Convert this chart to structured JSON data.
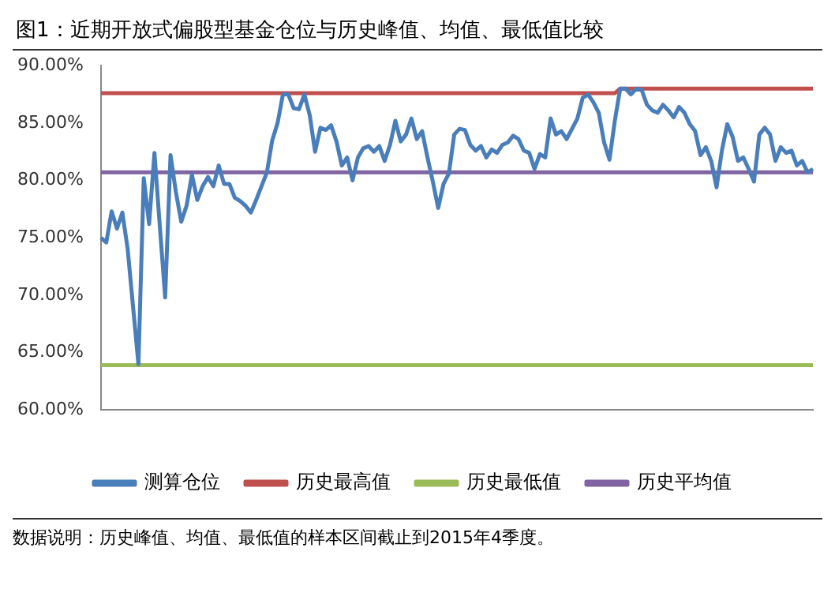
{
  "chart_data": {
    "type": "line",
    "title": "图1：近期开放式偏股型基金仓位与历史峰值、均值、最低值比较",
    "categories": [
      null,
      null,
      null,
      null,
      null,
      null,
      null,
      null,
      null,
      null,
      null,
      null,
      null,
      null,
      null,
      null,
      null,
      null,
      null,
      null,
      null,
      null,
      null,
      null,
      null,
      null,
      null,
      null,
      null,
      null,
      null,
      null,
      null,
      null,
      null,
      null,
      null,
      null,
      null,
      null,
      null,
      null,
      null,
      null,
      null,
      null,
      null,
      null,
      null,
      null,
      null,
      null,
      null,
      null,
      null,
      null,
      null,
      null,
      null,
      null,
      null,
      null,
      null,
      null,
      null,
      null,
      null,
      null,
      null,
      null,
      null,
      null,
      null,
      null,
      null,
      null,
      null,
      null,
      null,
      null,
      null,
      null,
      null,
      null,
      null,
      null,
      null,
      null,
      null,
      null,
      null,
      null,
      null,
      null,
      null,
      null,
      null,
      null,
      null,
      null,
      null,
      null,
      null,
      null,
      null,
      null,
      null,
      null,
      null,
      null,
      null,
      null,
      null,
      null,
      null,
      null,
      null,
      null,
      null,
      null,
      null,
      null,
      null,
      null,
      null,
      null,
      null,
      null,
      null,
      null,
      null,
      null,
      null,
      null
    ],
    "series": [
      {
        "name": "测算仓位",
        "color": "#4a7ebb",
        "values": [
          75.0,
          74.6,
          77.3,
          75.8,
          77.2,
          74,
          69,
          64.0,
          80.2,
          76.2,
          82.4,
          76,
          69.8,
          82.2,
          79,
          76.4,
          77.8,
          80.5,
          78.3,
          79.5,
          80.3,
          79.5,
          81.3,
          79.7,
          79.7,
          78.5,
          78.2,
          77.8,
          77.2,
          78.3,
          79.5,
          80.7,
          83.5,
          85.0,
          87.5,
          87.5,
          86.3,
          86.2,
          87.5,
          85.7,
          82.5,
          84.6,
          84.4,
          84.8,
          83.4,
          81.3,
          82.0,
          80.0,
          82.0,
          82.8,
          83.0,
          82.5,
          83.0,
          81.7,
          83.1,
          85.2,
          83.4,
          84.0,
          85.4,
          83.6,
          84.3,
          82.0,
          79.9,
          77.6,
          79.7,
          80.6,
          84.0,
          84.5,
          84.4,
          83.1,
          82.6,
          83.0,
          82.0,
          82.7,
          82.4,
          83.1,
          83.3,
          83.9,
          83.6,
          82.6,
          82.4,
          81.0,
          82.3,
          82.0,
          85.4,
          84.0,
          84.3,
          83.6,
          84.5,
          85.4,
          87.2,
          87.5,
          86.8,
          85.9,
          83.3,
          81.8,
          85.2,
          88.0,
          88.0,
          87.5,
          88.0,
          87.9,
          86.6,
          86.1,
          85.9,
          86.6,
          86.1,
          85.5,
          86.4,
          85.9,
          84.9,
          84.3,
          82.2,
          82.9,
          81.7,
          79.4,
          82.6,
          84.9,
          83.8,
          81.7,
          82.0,
          81.0,
          79.9,
          84.0,
          84.6,
          84.0,
          81.7,
          82.9,
          82.4,
          82.6,
          81.3,
          81.7,
          80.7,
          81.0
        ]
      },
      {
        "name": "历史最高值",
        "color": "#c0504d",
        "values": [
          87.6,
          87.6,
          87.6,
          87.6,
          87.6,
          87.6,
          87.6,
          87.6,
          87.6,
          87.6,
          87.6,
          87.6,
          87.6,
          87.6,
          87.6,
          87.6,
          87.6,
          87.6,
          87.6,
          87.6,
          87.6,
          87.6,
          87.6,
          87.6,
          87.6,
          87.6,
          87.6,
          87.6,
          87.6,
          87.6,
          87.6,
          87.6,
          87.6,
          87.6,
          87.6,
          87.6,
          87.6,
          87.6,
          87.6,
          87.6,
          87.6,
          87.6,
          87.6,
          87.6,
          87.6,
          87.6,
          87.6,
          87.6,
          87.6,
          87.6,
          87.6,
          87.6,
          87.6,
          87.6,
          87.6,
          87.6,
          87.6,
          87.6,
          87.6,
          87.6,
          87.6,
          87.6,
          87.6,
          87.6,
          87.6,
          87.6,
          87.6,
          87.6,
          87.6,
          87.6,
          87.6,
          87.6,
          87.6,
          87.6,
          87.6,
          87.6,
          87.6,
          87.6,
          87.6,
          87.6,
          87.6,
          87.6,
          87.6,
          87.6,
          87.6,
          87.6,
          87.6,
          87.6,
          87.6,
          87.6,
          87.6,
          87.6,
          87.6,
          87.6,
          87.6,
          87.6,
          87.6,
          88.0,
          88.0,
          88.0,
          88.0,
          88.0,
          88.0,
          88.0,
          88.0,
          88.0,
          88.0,
          88.0,
          88.0,
          88.0,
          88.0,
          88.0,
          88.0,
          88.0,
          88.0,
          88.0,
          88.0,
          88.0,
          88.0,
          88.0,
          88.0,
          88.0,
          88.0,
          88.0,
          88.0,
          88.0,
          88.0,
          88.0,
          88.0,
          88.0,
          88.0,
          88.0,
          88.0,
          88.0
        ]
      },
      {
        "name": "历史最低值",
        "color": "#9bbb59",
        "values": [
          63.9,
          63.9,
          63.9,
          63.9,
          63.9,
          63.9,
          63.9,
          63.9,
          63.9,
          63.9,
          63.9,
          63.9,
          63.9,
          63.9,
          63.9,
          63.9,
          63.9,
          63.9,
          63.9,
          63.9,
          63.9,
          63.9,
          63.9,
          63.9,
          63.9,
          63.9,
          63.9,
          63.9,
          63.9,
          63.9,
          63.9,
          63.9,
          63.9,
          63.9,
          63.9,
          63.9,
          63.9,
          63.9,
          63.9,
          63.9,
          63.9,
          63.9,
          63.9,
          63.9,
          63.9,
          63.9,
          63.9,
          63.9,
          63.9,
          63.9,
          63.9,
          63.9,
          63.9,
          63.9,
          63.9,
          63.9,
          63.9,
          63.9,
          63.9,
          63.9,
          63.9,
          63.9,
          63.9,
          63.9,
          63.9,
          63.9,
          63.9,
          63.9,
          63.9,
          63.9,
          63.9,
          63.9,
          63.9,
          63.9,
          63.9,
          63.9,
          63.9,
          63.9,
          63.9,
          63.9,
          63.9,
          63.9,
          63.9,
          63.9,
          63.9,
          63.9,
          63.9,
          63.9,
          63.9,
          63.9,
          63.9,
          63.9,
          63.9,
          63.9,
          63.9,
          63.9,
          63.9,
          63.9,
          63.9,
          63.9,
          63.9,
          63.9,
          63.9,
          63.9,
          63.9,
          63.9,
          63.9,
          63.9,
          63.9,
          63.9,
          63.9,
          63.9,
          63.9,
          63.9,
          63.9,
          63.9,
          63.9,
          63.9,
          63.9,
          63.9,
          63.9,
          63.9,
          63.9,
          63.9,
          63.9,
          63.9,
          63.9,
          63.9,
          63.9,
          63.9,
          63.9,
          63.9,
          63.9,
          63.9
        ]
      },
      {
        "name": "历史平均值",
        "color": "#8064a2",
        "values": [
          80.7,
          80.7,
          80.7,
          80.7,
          80.7,
          80.7,
          80.7,
          80.7,
          80.7,
          80.7,
          80.7,
          80.7,
          80.7,
          80.7,
          80.7,
          80.7,
          80.7,
          80.7,
          80.7,
          80.7,
          80.7,
          80.7,
          80.7,
          80.7,
          80.7,
          80.7,
          80.7,
          80.7,
          80.7,
          80.7,
          80.7,
          80.7,
          80.7,
          80.7,
          80.7,
          80.7,
          80.7,
          80.7,
          80.7,
          80.7,
          80.7,
          80.7,
          80.7,
          80.7,
          80.7,
          80.7,
          80.7,
          80.7,
          80.7,
          80.7,
          80.7,
          80.7,
          80.7,
          80.7,
          80.7,
          80.7,
          80.7,
          80.7,
          80.7,
          80.7,
          80.7,
          80.7,
          80.7,
          80.7,
          80.7,
          80.7,
          80.7,
          80.7,
          80.7,
          80.7,
          80.7,
          80.7,
          80.7,
          80.7,
          80.7,
          80.7,
          80.7,
          80.7,
          80.7,
          80.7,
          80.7,
          80.7,
          80.7,
          80.7,
          80.7,
          80.7,
          80.7,
          80.7,
          80.7,
          80.7,
          80.7,
          80.7,
          80.7,
          80.7,
          80.7,
          80.7,
          80.7,
          80.7,
          80.7,
          80.7,
          80.7,
          80.7,
          80.7,
          80.7,
          80.7,
          80.7,
          80.7,
          80.7,
          80.7,
          80.7,
          80.7,
          80.7,
          80.7,
          80.7,
          80.7,
          80.7,
          80.7,
          80.7,
          80.7,
          80.7,
          80.7,
          80.7,
          80.7,
          80.7,
          80.7,
          80.7,
          80.7,
          80.7,
          80.7,
          80.7,
          80.7,
          80.7,
          80.7,
          80.7
        ]
      }
    ],
    "ylim": [
      60,
      90
    ],
    "yticks": [
      {
        "value": 60,
        "label": "60.00%"
      },
      {
        "value": 65,
        "label": "65.00%"
      },
      {
        "value": 70,
        "label": "70.00%"
      },
      {
        "value": 75,
        "label": "75.00%"
      },
      {
        "value": 80,
        "label": "80.00%"
      },
      {
        "value": 85,
        "label": "85.00%"
      },
      {
        "value": 90,
        "label": "90.00%"
      }
    ],
    "grid": false,
    "legend": "bottom",
    "marker": "none",
    "line_style": "solid",
    "annotations": [
      "数据说明：历史峰值、均值、最低值的样本区间截止到2015年4季度。"
    ]
  }
}
